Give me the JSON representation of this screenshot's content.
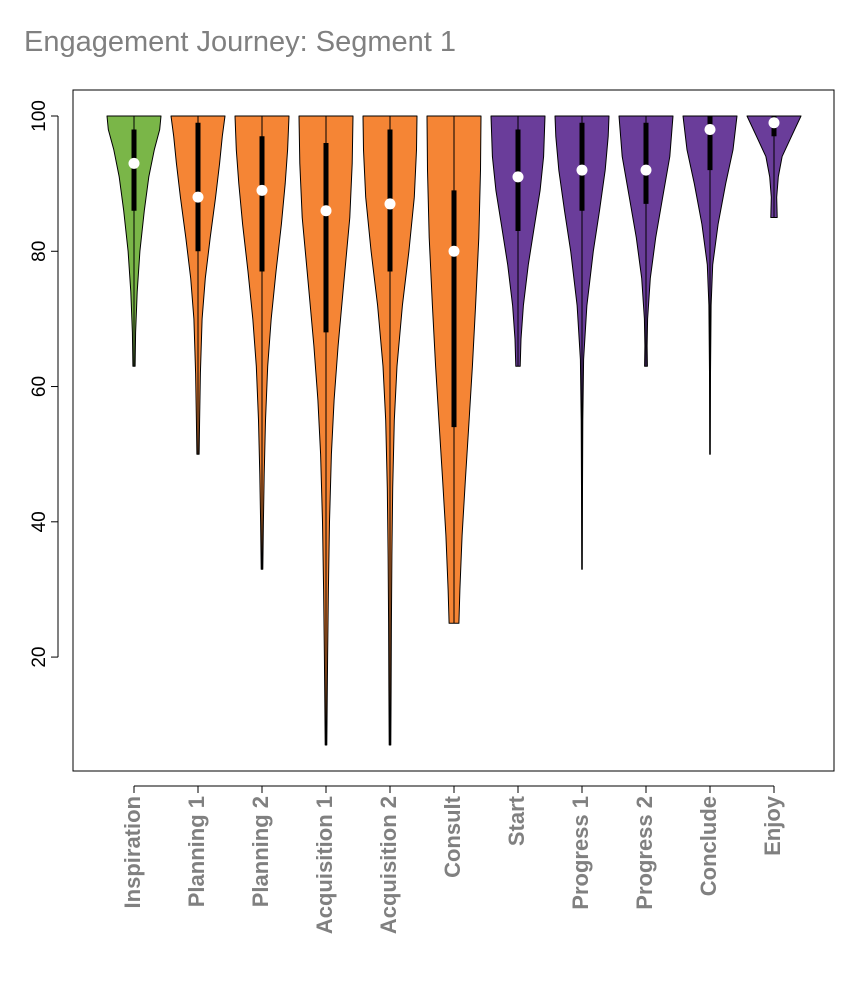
{
  "chart_data": {
    "type": "violin",
    "title": "Engagement Journey: Segment 1",
    "xlabel": "",
    "ylabel": "",
    "ylim": [
      4,
      105
    ],
    "yticks": [
      20,
      40,
      60,
      80,
      100
    ],
    "grid": false,
    "colors": {
      "green": "#7ab648",
      "orange": "#f58535",
      "purple": "#6a3d9a"
    },
    "categories": [
      "Inspiration",
      "Planning 1",
      "Planning 2",
      "Acquisition 1",
      "Acquisition 2",
      "Consult",
      "Start",
      "Progress 1",
      "Progress 2",
      "Conclude",
      "Enjoy"
    ],
    "series": [
      {
        "name": "Inspiration",
        "color": "green",
        "min": 63,
        "q1": 86,
        "median": 93,
        "q3": 98,
        "max": 100,
        "profile": [
          [
            63,
            0.04
          ],
          [
            68,
            0.06
          ],
          [
            74,
            0.12
          ],
          [
            80,
            0.22
          ],
          [
            86,
            0.38
          ],
          [
            91,
            0.55
          ],
          [
            95,
            0.75
          ],
          [
            98,
            0.95
          ],
          [
            100,
            1.0
          ]
        ]
      },
      {
        "name": "Planning 1",
        "color": "orange",
        "min": 50,
        "q1": 80,
        "median": 88,
        "q3": 99,
        "max": 100,
        "profile": [
          [
            50,
            0.04
          ],
          [
            55,
            0.06
          ],
          [
            62,
            0.09
          ],
          [
            70,
            0.15
          ],
          [
            76,
            0.27
          ],
          [
            82,
            0.45
          ],
          [
            88,
            0.65
          ],
          [
            93,
            0.8
          ],
          [
            97,
            0.9
          ],
          [
            100,
            1.0
          ]
        ]
      },
      {
        "name": "Planning 2",
        "color": "orange",
        "min": 33,
        "q1": 77,
        "median": 89,
        "q3": 97,
        "max": 100,
        "profile": [
          [
            33,
            0.03
          ],
          [
            40,
            0.05
          ],
          [
            47,
            0.08
          ],
          [
            55,
            0.13
          ],
          [
            63,
            0.21
          ],
          [
            70,
            0.34
          ],
          [
            77,
            0.52
          ],
          [
            84,
            0.72
          ],
          [
            90,
            0.86
          ],
          [
            95,
            0.95
          ],
          [
            100,
            1.0
          ]
        ]
      },
      {
        "name": "Acquisition 1",
        "color": "orange",
        "min": 7,
        "q1": 68,
        "median": 86,
        "q3": 96,
        "max": 100,
        "profile": [
          [
            7,
            0.03
          ],
          [
            12,
            0.04
          ],
          [
            20,
            0.06
          ],
          [
            30,
            0.09
          ],
          [
            40,
            0.13
          ],
          [
            50,
            0.2
          ],
          [
            58,
            0.3
          ],
          [
            66,
            0.45
          ],
          [
            75,
            0.65
          ],
          [
            85,
            0.88
          ],
          [
            93,
            0.97
          ],
          [
            100,
            1.0
          ]
        ]
      },
      {
        "name": "Acquisition 2",
        "color": "orange",
        "min": 7,
        "q1": 77,
        "median": 87,
        "q3": 98,
        "max": 100,
        "profile": [
          [
            7,
            0.03
          ],
          [
            15,
            0.04
          ],
          [
            25,
            0.05
          ],
          [
            35,
            0.07
          ],
          [
            45,
            0.1
          ],
          [
            55,
            0.16
          ],
          [
            63,
            0.26
          ],
          [
            72,
            0.46
          ],
          [
            80,
            0.7
          ],
          [
            88,
            0.9
          ],
          [
            95,
            0.98
          ],
          [
            100,
            1.0
          ]
        ]
      },
      {
        "name": "Consult",
        "color": "orange",
        "min": 25,
        "q1": 54,
        "median": 80,
        "q3": 89,
        "max": 100,
        "profile": [
          [
            25,
            0.18
          ],
          [
            30,
            0.22
          ],
          [
            38,
            0.3
          ],
          [
            46,
            0.42
          ],
          [
            55,
            0.56
          ],
          [
            63,
            0.68
          ],
          [
            72,
            0.8
          ],
          [
            82,
            0.92
          ],
          [
            92,
            0.98
          ],
          [
            100,
            1.0
          ]
        ]
      },
      {
        "name": "Start",
        "color": "purple",
        "min": 63,
        "q1": 83,
        "median": 91,
        "q3": 98,
        "max": 100,
        "profile": [
          [
            63,
            0.08
          ],
          [
            67,
            0.11
          ],
          [
            72,
            0.2
          ],
          [
            78,
            0.38
          ],
          [
            84,
            0.62
          ],
          [
            89,
            0.82
          ],
          [
            94,
            0.95
          ],
          [
            100,
            1.0
          ]
        ]
      },
      {
        "name": "Progress 1",
        "color": "purple",
        "min": 33,
        "q1": 86,
        "median": 92,
        "q3": 99,
        "max": 100,
        "profile": [
          [
            33,
            0.01
          ],
          [
            45,
            0.02
          ],
          [
            55,
            0.03
          ],
          [
            64,
            0.06
          ],
          [
            72,
            0.18
          ],
          [
            80,
            0.42
          ],
          [
            86,
            0.65
          ],
          [
            92,
            0.86
          ],
          [
            97,
            0.97
          ],
          [
            100,
            1.0
          ]
        ]
      },
      {
        "name": "Progress 2",
        "color": "purple",
        "min": 63,
        "q1": 87,
        "median": 92,
        "q3": 99,
        "max": 100,
        "profile": [
          [
            63,
            0.05
          ],
          [
            66,
            0.04
          ],
          [
            70,
            0.06
          ],
          [
            76,
            0.16
          ],
          [
            82,
            0.36
          ],
          [
            88,
            0.62
          ],
          [
            94,
            0.88
          ],
          [
            100,
            1.0
          ]
        ]
      },
      {
        "name": "Conclude",
        "color": "purple",
        "min": 50,
        "q1": 92,
        "median": 98,
        "q3": 100,
        "max": 100,
        "profile": [
          [
            50,
            0.01
          ],
          [
            62,
            0.02
          ],
          [
            72,
            0.04
          ],
          [
            78,
            0.1
          ],
          [
            84,
            0.3
          ],
          [
            90,
            0.58
          ],
          [
            95,
            0.85
          ],
          [
            100,
            1.0
          ]
        ]
      },
      {
        "name": "Enjoy",
        "color": "purple",
        "min": 85,
        "q1": 97,
        "median": 99,
        "q3": 100,
        "max": 100,
        "profile": [
          [
            85,
            0.12
          ],
          [
            88,
            0.1
          ],
          [
            91,
            0.16
          ],
          [
            94,
            0.3
          ],
          [
            97,
            0.65
          ],
          [
            100,
            1.0
          ]
        ]
      }
    ]
  }
}
